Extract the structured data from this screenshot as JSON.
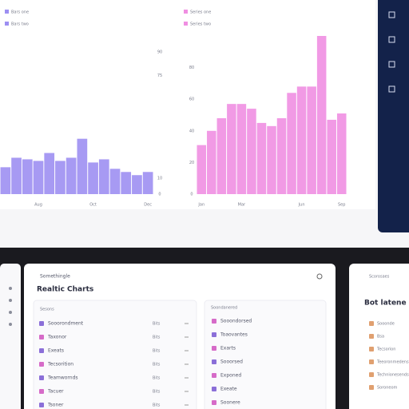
{
  "chart_data": [
    {
      "type": "bar",
      "color": "#9d8ff2",
      "legend": [
        "Bars one",
        "Bars two"
      ],
      "categories": [
        null,
        null,
        null,
        "Aug",
        null,
        null,
        null,
        null,
        "Oct",
        null,
        null,
        null,
        null,
        "Dec"
      ],
      "values": [
        17,
        23,
        22,
        21,
        26,
        21,
        23,
        35,
        20,
        22,
        16,
        14,
        12,
        14
      ],
      "ylim": [
        0,
        100
      ],
      "yticks": [
        0,
        10,
        75,
        90
      ]
    },
    {
      "type": "bar",
      "color": "#f08fe2",
      "legend": [
        "Series one",
        "Series two"
      ],
      "categories": [
        "Jan",
        null,
        null,
        null,
        "Mar",
        null,
        null,
        null,
        null,
        null,
        "Jun",
        null,
        null,
        null,
        "Sep"
      ],
      "values": [
        31,
        40,
        48,
        57,
        57,
        54,
        45,
        43,
        48,
        64,
        68,
        68,
        100,
        47,
        51
      ],
      "ylim": [
        0,
        100
      ],
      "yticks": [
        0,
        20,
        40,
        60,
        80
      ]
    }
  ],
  "bottom": {
    "header": "Somethingle",
    "title": "Realtic Charts",
    "list_a": {
      "title": "Sesons",
      "rows": [
        {
          "label": "Sooorondment",
          "tag": "Bits"
        },
        {
          "label": "Taxonor",
          "tag": "Bits"
        },
        {
          "label": "Exeats",
          "tag": "Bits"
        },
        {
          "label": "Tecsorition",
          "tag": "Bits"
        },
        {
          "label": "Teamwornds",
          "tag": "Bits"
        },
        {
          "label": "Tacuer",
          "tag": "Bits"
        },
        {
          "label": "Tsoner",
          "tag": "Bits"
        }
      ]
    },
    "list_b": {
      "title": "Soondanered",
      "rows": [
        {
          "label": "Sooondorsed"
        },
        {
          "label": "Toaovantes"
        },
        {
          "label": "Exarts"
        },
        {
          "label": "Sooorsed"
        },
        {
          "label": "Exponed"
        },
        {
          "label": "Exeate"
        },
        {
          "label": "Soonere"
        }
      ]
    },
    "side": {
      "header": "Scorosaes",
      "title": "Bot latene ro",
      "rows": [
        "Sooonde",
        "Bsa",
        "Tecsorion",
        "Teeoronmedens",
        "Technionesends",
        "Soroneom"
      ]
    }
  }
}
